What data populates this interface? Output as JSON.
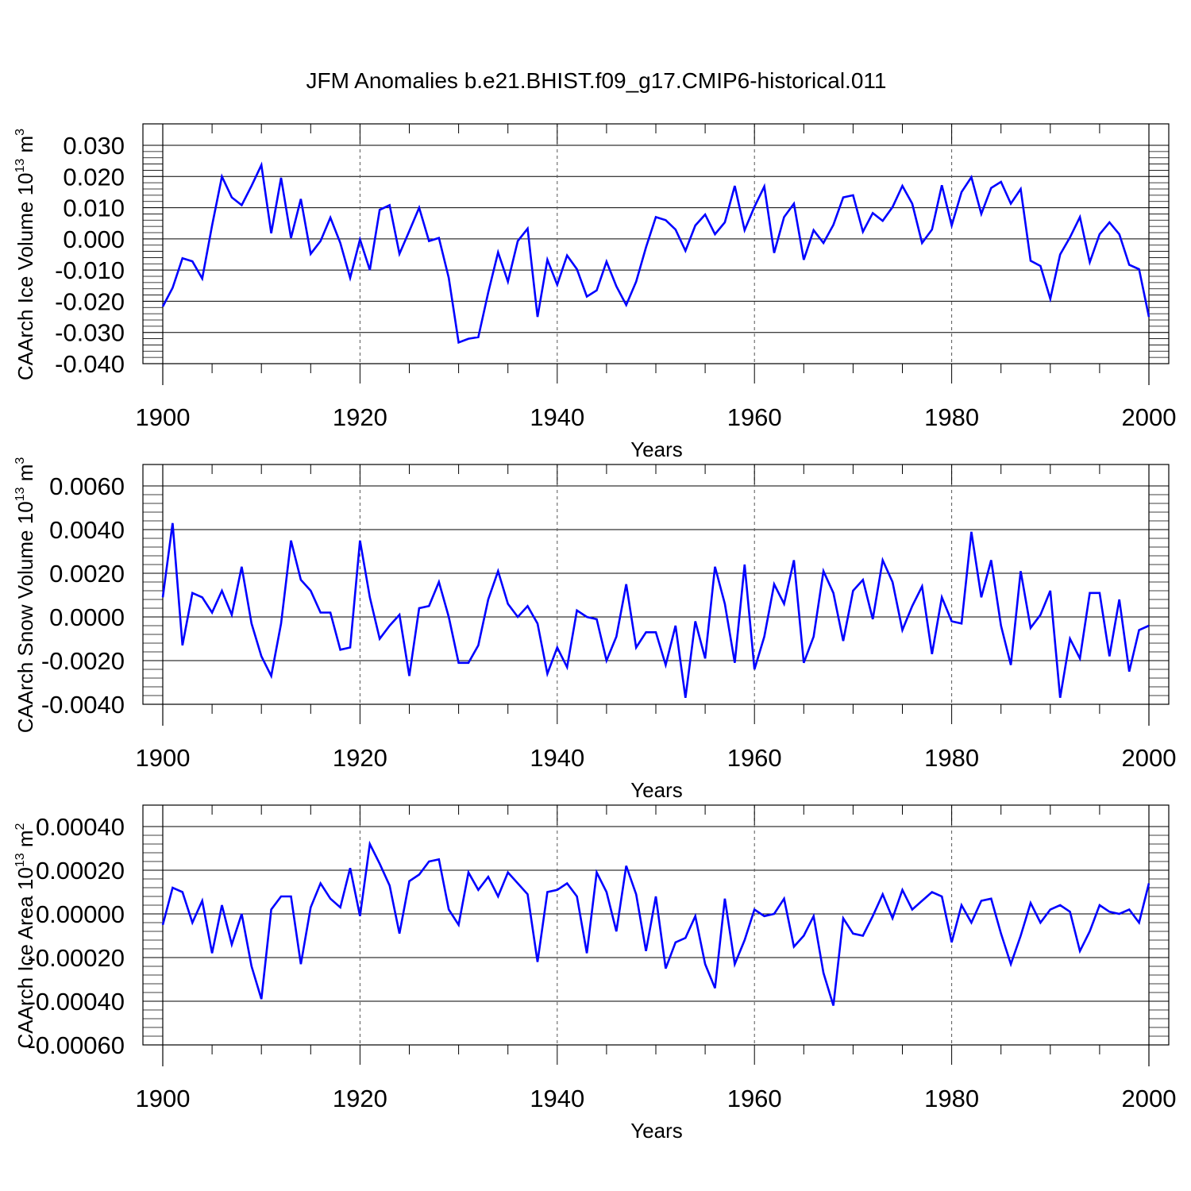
{
  "title": "JFM Anomalies b.e21.BHIST.f09_g17.CMIP6-historical.011",
  "line_color": "#0000ff",
  "chart_data": [
    {
      "type": "line",
      "title": "JFM Anomalies b.e21.BHIST.f09_g17.CMIP6-historical.011",
      "xlabel": "Years",
      "ylabel": "CAArch Ice Volume 10",
      "ylabel_exp": "13",
      "ylabel_unit": " m",
      "ylabel_unit_exp": "3",
      "xlim": [
        1900,
        2000
      ],
      "ylim": [
        -0.04,
        0.03
      ],
      "x_ticks": [
        1900,
        1920,
        1940,
        1960,
        1980,
        2000
      ],
      "x_tick_labels": [
        "1900",
        "1920",
        "1940",
        "1960",
        "1980",
        "2000"
      ],
      "y_ticks": [
        -0.04,
        -0.03,
        -0.02,
        -0.01,
        0.0,
        0.01,
        0.02,
        0.03
      ],
      "y_tick_labels": [
        "-0.040",
        "-0.030",
        "-0.020",
        "-0.010",
        "0.000",
        "0.010",
        "0.020",
        "0.030"
      ],
      "x_start": 1900,
      "series": [
        {
          "name": "CAArch Ice Volume",
          "values": [
            -0.0217,
            -0.0157,
            -0.0062,
            -0.0072,
            -0.0127,
            0.0043,
            0.02,
            0.0133,
            0.0108,
            0.017,
            0.0237,
            0.0018,
            0.0196,
            0.0003,
            0.0128,
            -0.0048,
            -0.0007,
            0.0068,
            -0.0013,
            -0.0125,
            -0.0002,
            -0.01,
            0.0093,
            0.0108,
            -0.0048,
            0.0025,
            0.01,
            -0.0007,
            0.0003,
            -0.0125,
            -0.0332,
            -0.032,
            -0.0315,
            -0.0172,
            -0.0043,
            -0.0137,
            -0.0007,
            0.0033,
            -0.025,
            -0.0067,
            -0.0147,
            -0.0053,
            -0.0097,
            -0.0185,
            -0.0165,
            -0.0073,
            -0.0152,
            -0.0212,
            -0.0137,
            -0.0027,
            0.007,
            0.006,
            0.003,
            -0.0038,
            0.0043,
            0.0078,
            0.0015,
            0.0053,
            0.017,
            0.0028,
            0.0103,
            0.0168,
            -0.0045,
            0.007,
            0.0113,
            -0.0067,
            0.0028,
            -0.0013,
            0.0045,
            0.0133,
            0.014,
            0.0023,
            0.0083,
            0.0058,
            0.0102,
            0.017,
            0.0113,
            -0.0013,
            0.003,
            0.0172,
            0.0043,
            0.015,
            0.0198,
            0.008,
            0.0163,
            0.0183,
            0.0113,
            0.016,
            -0.007,
            -0.0087,
            -0.0192,
            -0.005,
            0.0005,
            0.007,
            -0.0075,
            0.0015,
            0.0053,
            0.0015,
            -0.0083,
            -0.0097,
            -0.025
          ]
        }
      ]
    },
    {
      "type": "line",
      "xlabel": "Years",
      "ylabel": "CAArch Snow Volume 10",
      "ylabel_exp": "13",
      "ylabel_unit": " m",
      "ylabel_unit_exp": "3",
      "xlim": [
        1900,
        2000
      ],
      "ylim": [
        -0.004,
        0.006
      ],
      "x_ticks": [
        1900,
        1920,
        1940,
        1960,
        1980,
        2000
      ],
      "x_tick_labels": [
        "1900",
        "1920",
        "1940",
        "1960",
        "1980",
        "2000"
      ],
      "y_ticks": [
        -0.004,
        -0.002,
        0.0,
        0.002,
        0.004,
        0.006
      ],
      "y_tick_labels": [
        "-0.0040",
        "-0.0020",
        "0.0000",
        "0.0020",
        "0.0040",
        "0.0060"
      ],
      "x_start": 1900,
      "series": [
        {
          "name": "CAArch Snow Volume",
          "values": [
            0.0009,
            0.0043,
            -0.0013,
            0.0011,
            0.0009,
            0.0002,
            0.0012,
            0.0001,
            0.0023,
            -0.0003,
            -0.0018,
            -0.0027,
            -0.0003,
            0.0035,
            0.0017,
            0.0012,
            0.0002,
            0.0002,
            -0.0015,
            -0.0014,
            0.0035,
            0.0009,
            -0.001,
            -0.0004,
            0.0001,
            -0.0027,
            0.0004,
            0.0005,
            0.0016,
            0.0,
            -0.0021,
            -0.0021,
            -0.0013,
            0.0008,
            0.0021,
            0.0006,
            0.0,
            0.0005,
            -0.0003,
            -0.0026,
            -0.0014,
            -0.0023,
            0.0003,
            0.0,
            -0.0001,
            -0.002,
            -0.0009,
            0.0015,
            -0.0014,
            -0.0007,
            -0.0007,
            -0.0022,
            -0.0004,
            -0.0037,
            -0.0002,
            -0.0019,
            0.0023,
            0.0006,
            -0.0021,
            0.0024,
            -0.0024,
            -0.0009,
            0.0015,
            0.0006,
            0.0026,
            -0.0021,
            -0.0009,
            0.0021,
            0.0011,
            -0.0011,
            0.0012,
            0.0017,
            -0.0001,
            0.0026,
            0.0016,
            -0.0006,
            0.0005,
            0.0014,
            -0.0017,
            0.0009,
            -0.0002,
            -0.0003,
            0.0039,
            0.0009,
            0.0026,
            -0.0004,
            -0.0022,
            0.0021,
            -0.0005,
            0.0001,
            0.0012,
            -0.0037,
            -0.001,
            -0.0019,
            0.0011,
            0.0011,
            -0.0018,
            0.0008,
            -0.0025,
            -0.0006,
            -0.0004
          ]
        }
      ]
    },
    {
      "type": "line",
      "xlabel": "Years",
      "ylabel": "CAArch Ice Area 10",
      "ylabel_exp": "13",
      "ylabel_unit": " m",
      "ylabel_unit_exp": "2",
      "xlim": [
        1900,
        2000
      ],
      "ylim": [
        -0.0006,
        0.0004
      ],
      "x_ticks": [
        1900,
        1920,
        1940,
        1960,
        1980,
        2000
      ],
      "x_tick_labels": [
        "1900",
        "1920",
        "1940",
        "1960",
        "1980",
        "2000"
      ],
      "y_ticks": [
        -0.0006,
        -0.0004,
        -0.0002,
        0.0,
        0.0002,
        0.0004
      ],
      "y_tick_labels": [
        "-0.00060",
        "-0.00040",
        "-0.00020",
        "0.00000",
        "0.00020",
        "0.00040"
      ],
      "x_start": 1900,
      "series": [
        {
          "name": "CAArch Ice Area",
          "values": [
            -5e-05,
            0.00012,
            0.0001,
            -4e-05,
            6e-05,
            -0.00018,
            4e-05,
            -0.00014,
            0.0,
            -0.00024,
            -0.00039,
            2e-05,
            8e-05,
            8e-05,
            -0.00023,
            3e-05,
            0.00014,
            7e-05,
            3e-05,
            0.00021,
            -1e-05,
            0.00032,
            0.00023,
            0.00013,
            -9e-05,
            0.00015,
            0.00018,
            0.00024,
            0.00025,
            2e-05,
            -5e-05,
            0.00019,
            0.00011,
            0.00017,
            8e-05,
            0.00019,
            0.00014,
            9e-05,
            -0.00022,
            0.0001,
            0.00011,
            0.00014,
            8e-05,
            -0.00018,
            0.00019,
            0.0001,
            -8e-05,
            0.00022,
            9e-05,
            -0.00017,
            8e-05,
            -0.00025,
            -0.00013,
            -0.00011,
            -1e-05,
            -0.00023,
            -0.00034,
            7e-05,
            -0.00023,
            -0.00012,
            2e-05,
            -1e-05,
            0.0,
            7e-05,
            -0.00015,
            -0.0001,
            -1e-05,
            -0.00027,
            -0.00042,
            -2e-05,
            -9e-05,
            -0.0001,
            -1e-05,
            9e-05,
            -2e-05,
            0.00011,
            2e-05,
            6e-05,
            0.0001,
            8e-05,
            -0.00013,
            4e-05,
            -4e-05,
            6e-05,
            7e-05,
            -9e-05,
            -0.00023,
            -0.0001,
            5e-05,
            -4e-05,
            2e-05,
            4e-05,
            1e-05,
            -0.00017,
            -8e-05,
            4e-05,
            1e-05,
            0.0,
            2e-05,
            -4e-05,
            0.00014
          ]
        }
      ]
    }
  ]
}
